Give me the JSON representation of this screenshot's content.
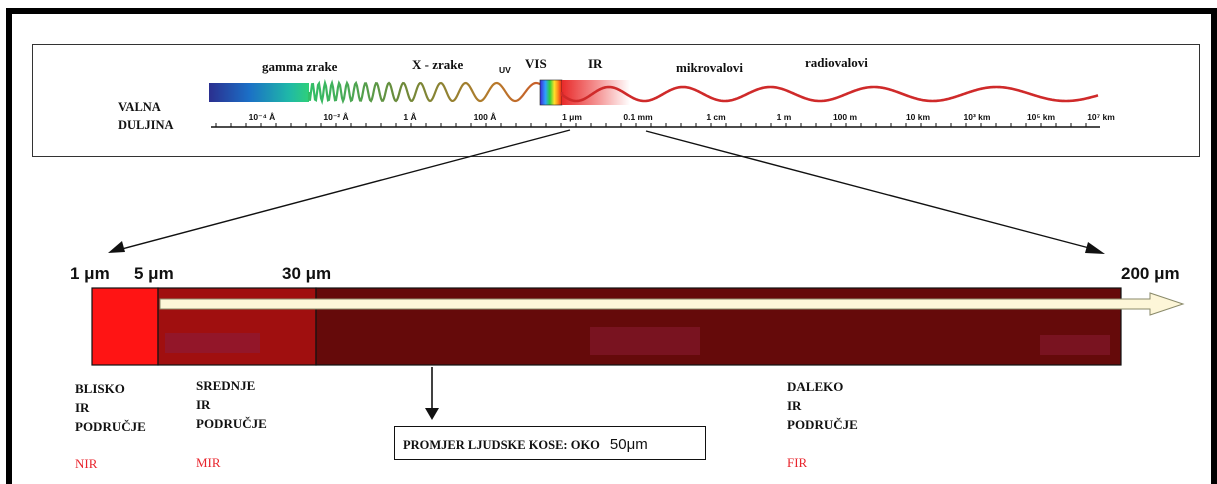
{
  "spectrum": {
    "axis_title_line1": "VALNA",
    "axis_title_line2": "DULJINA",
    "bands": {
      "gamma": "gamma zrake",
      "xray": "X - zrake",
      "uv": "UV",
      "vis": "VIS",
      "ir": "IR",
      "micro": "mikrovalovi",
      "radio": "radiovalovi"
    },
    "ticks": [
      "10⁻⁴ Å",
      "10⁻² Å",
      "1 Å",
      "100 Å",
      "1 μm",
      "0.1 mm",
      "1 cm",
      "1 m",
      "100 m",
      "10 km",
      "10³ km",
      "10⁵ km",
      "10⁷ km"
    ]
  },
  "ir_bar": {
    "labels": {
      "l1": "1 μm",
      "l5": "5 μm",
      "l30": "30 μm",
      "l200": "200 μm"
    },
    "colors": {
      "nir": "#ff1414",
      "mir": "#a00f0f",
      "fir": "#650a0a"
    }
  },
  "regions": {
    "near": {
      "l1": "BLISKO",
      "l2": "IR",
      "l3": "PODRUČJE",
      "abbr": "NIR"
    },
    "mid": {
      "l1": "SREDNJE",
      "l2": "IR",
      "l3": "PODRUČJE",
      "abbr": "MIR"
    },
    "far": {
      "l1": "DALEKO",
      "l2": "IR",
      "l3": "PODRUČJE",
      "abbr": "FIR"
    }
  },
  "hair": {
    "text": "PROMJER LJUDSKE KOSE: OKO",
    "value": "50μm"
  }
}
